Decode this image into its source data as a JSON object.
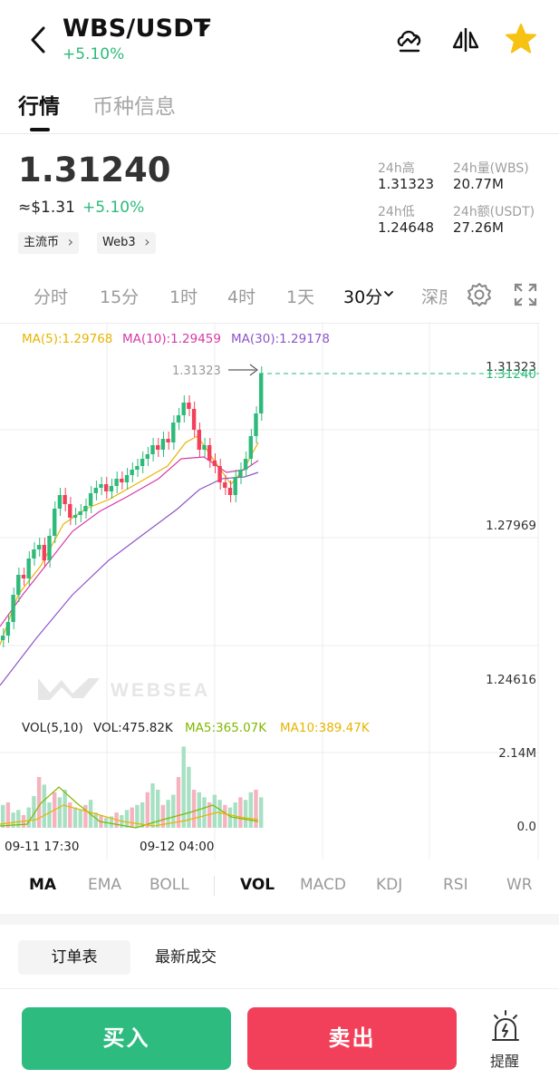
{
  "header": {
    "pair": "WBS/USDT",
    "change": "+5.10%",
    "icons": [
      "back-icon",
      "switch-chart-icon",
      "compare-icon",
      "favorite-star-icon"
    ]
  },
  "tabs": [
    "行情",
    "币种信息"
  ],
  "price": {
    "last": "1.31240",
    "usd": "≈$1.31",
    "change": "+5.10%",
    "tags": [
      "主流币",
      "Web3"
    ]
  },
  "stats": [
    {
      "label": "24h高",
      "value": "1.31323"
    },
    {
      "label": "24h量(WBS)",
      "value": "20.77M"
    },
    {
      "label": "24h低",
      "value": "1.24648"
    },
    {
      "label": "24h额(USDT)",
      "value": "27.26M"
    }
  ],
  "timeframes": [
    "分时",
    "15分",
    "1时",
    "4时",
    "1天",
    "30分",
    "深度"
  ],
  "active_timeframe": "30分",
  "chart": {
    "ma_line": {
      "ma5": "MA(5):1.29768",
      "ma10": "MA(10):1.29459",
      "ma30": "MA(30):1.29178"
    },
    "high_marker": "1.31323",
    "current_price_label": "1.31240",
    "y_labels": [
      "1.31323",
      "1.27969",
      "1.24616"
    ],
    "vol_line": {
      "title": "VOL(5,10)",
      "vol": "VOL:475.82K",
      "ma5": "MA5:365.07K",
      "ma10": "MA10:389.47K"
    },
    "vol_y_labels": [
      "2.14M",
      "0.0"
    ],
    "x_labels": [
      "09-11 17:30",
      "09-12 04:00"
    ],
    "watermark": "WEBSEA",
    "colors": {
      "up": "#2dba7a",
      "down": "#f2405a",
      "ma5": "#e8b400",
      "ma10": "#d63aa8",
      "ma30": "#8e55c8"
    }
  },
  "indicators": {
    "main": [
      "MA",
      "EMA",
      "BOLL"
    ],
    "sub": [
      "VOL",
      "MACD",
      "KDJ",
      "RSI",
      "WR"
    ],
    "active_main": "MA",
    "active_sub": "VOL"
  },
  "order_tabs": [
    "订单表",
    "最新成交"
  ],
  "actions": {
    "buy": "买入",
    "sell": "卖出",
    "alert": "提醒"
  }
}
